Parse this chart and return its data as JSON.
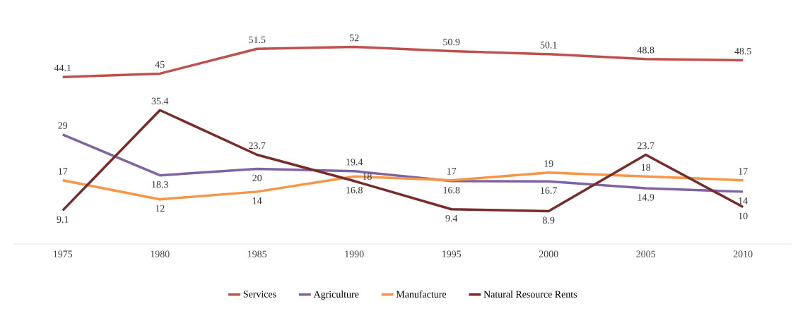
{
  "chart_data": {
    "type": "line",
    "categories": [
      "1975",
      "1980",
      "1985",
      "1990",
      "1995",
      "2000",
      "2005",
      "2010"
    ],
    "series": [
      {
        "name": "Services",
        "color": "#c0504d",
        "values": [
          44.1,
          45,
          51.5,
          52,
          50.9,
          50.1,
          48.8,
          48.5
        ]
      },
      {
        "name": "Agriculture",
        "color": "#8064a2",
        "values": [
          29,
          18.3,
          20,
          19.4,
          16.8,
          16.7,
          14.9,
          14
        ]
      },
      {
        "name": "Manufacture",
        "color": "#f79646",
        "values": [
          17,
          12,
          14,
          18,
          17,
          19,
          18,
          17
        ]
      },
      {
        "name": "Natural Resource Rents",
        "color": "#772c2a",
        "values": [
          9.1,
          35.4,
          23.7,
          16.8,
          9.4,
          8.9,
          23.7,
          10
        ]
      }
    ],
    "data_labels": true,
    "legend": "bottom",
    "grid": false
  }
}
